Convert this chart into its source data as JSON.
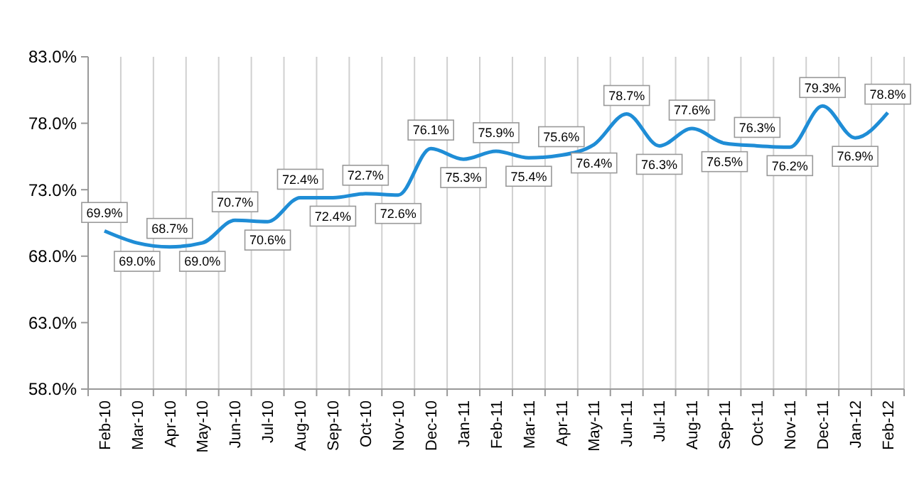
{
  "chart_data": {
    "type": "line",
    "categories": [
      "Feb-10",
      "Mar-10",
      "Apr-10",
      "May-10",
      "Jun-10",
      "Jul-10",
      "Aug-10",
      "Sep-10",
      "Oct-10",
      "Nov-10",
      "Dec-10",
      "Jan-11",
      "Feb-11",
      "Mar-11",
      "Apr-11",
      "May-11",
      "Jun-11",
      "Jul-11",
      "Aug-11",
      "Sep-11",
      "Oct-11",
      "Nov-11",
      "Dec-11",
      "Jan-12",
      "Feb-12"
    ],
    "series": [
      {
        "color": "#1f8dd6",
        "values": [
          69.9,
          69.0,
          68.7,
          69.0,
          70.7,
          70.6,
          72.4,
          72.4,
          72.7,
          72.6,
          76.1,
          75.3,
          75.9,
          75.4,
          75.6,
          76.4,
          78.7,
          76.3,
          77.6,
          76.5,
          76.3,
          76.2,
          79.3,
          76.9,
          78.8
        ],
        "value_labels": [
          "69.9%",
          "69.0%",
          "68.7%",
          "69.0%",
          "70.7%",
          "70.6%",
          "72.4%",
          "72.4%",
          "72.7%",
          "72.6%",
          "76.1%",
          "75.3%",
          "75.9%",
          "75.4%",
          "75.6%",
          "76.4%",
          "78.7%",
          "76.3%",
          "77.6%",
          "76.5%",
          "76.3%",
          "76.2%",
          "79.3%",
          "76.9%",
          "78.8%"
        ]
      }
    ],
    "ylim": [
      58,
      83
    ],
    "yticks": [
      {
        "value": 58,
        "label": "58.0%"
      },
      {
        "value": 63,
        "label": "63.0%"
      },
      {
        "value": 68,
        "label": "68.0%"
      },
      {
        "value": 73,
        "label": "73.0%"
      },
      {
        "value": 78,
        "label": "78.0%"
      },
      {
        "value": 83,
        "label": "83.0%"
      }
    ],
    "grid": "x",
    "marker": "none",
    "line_style": "solid"
  }
}
